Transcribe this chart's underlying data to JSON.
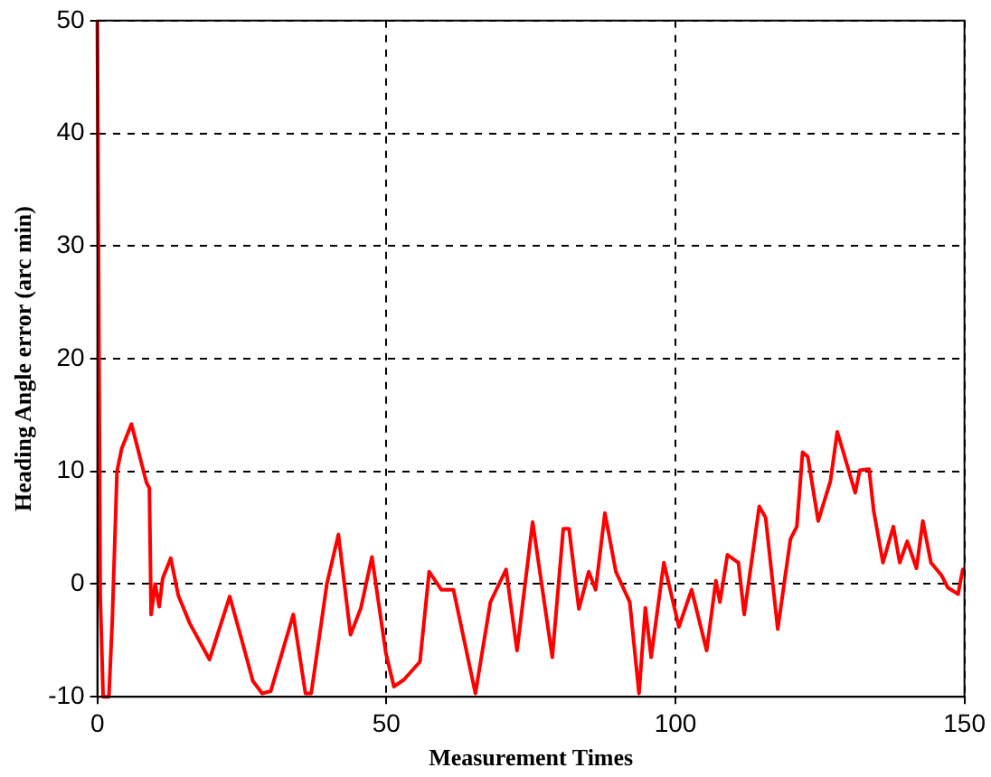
{
  "chart_data": {
    "type": "line",
    "xlabel": "Measurement Times",
    "ylabel": "Heading Angle error (arc min)",
    "x": [
      0,
      0.5,
      1,
      2,
      2.6,
      3.4,
      4.2,
      5.9,
      7,
      8.5,
      9,
      9.3,
      10,
      10.7,
      11.3,
      12.7,
      14,
      16,
      19.4,
      22.9,
      25,
      26.9,
      28.5,
      30,
      33.9,
      36,
      37,
      39.7,
      41.7,
      43.8,
      45.6,
      47.5,
      49.9,
      51.3,
      53,
      55.8,
      57.4,
      59.5,
      61.6,
      65.4,
      68,
      70.7,
      72.6,
      75.3,
      78.7,
      80.6,
      81.6,
      83.3,
      85,
      86.2,
      87.8,
      89.7,
      92.1,
      93.7,
      94.8,
      95.8,
      98,
      100.6,
      102.8,
      105.4,
      107,
      107.7,
      109,
      110.9,
      111.9,
      114.5,
      115.6,
      117.7,
      119.9,
      121,
      122,
      122.9,
      124.7,
      126.8,
      128,
      129,
      131.1,
      131.9,
      133.5,
      134.3,
      135.9,
      137.7,
      138.8,
      140.1,
      141.7,
      142.8,
      144.2,
      146,
      147.1,
      148.9,
      149.7,
      150
    ],
    "series": [
      {
        "color": "#ff0000",
        "values": [
          50,
          -1,
          -10,
          -10,
          -3,
          10,
          12,
          14.2,
          12,
          9,
          8.5,
          -2.7,
          0,
          -2,
          0.5,
          2.3,
          -1,
          -3.5,
          -6.7,
          -1.1,
          -5,
          -8.6,
          -9.7,
          -9.5,
          -2.7,
          -9.7,
          -9.7,
          0,
          4.4,
          -4.5,
          -2.1,
          2.4,
          -6.1,
          -9.1,
          -8.5,
          -6.9,
          1.1,
          -0.5,
          -0.5,
          -9.7,
          -1.6,
          1.3,
          -5.9,
          5.5,
          -6.5,
          4.9,
          4.9,
          -2.2,
          1.1,
          -0.5,
          6.3,
          1.1,
          -1.6,
          -9.7,
          -2.1,
          -6.5,
          1.9,
          -3.8,
          -0.5,
          -5.9,
          0.3,
          -1.6,
          2.6,
          1.9,
          -2.7,
          6.9,
          5.9,
          -4,
          4,
          5.1,
          11.7,
          11.3,
          5.6,
          9.1,
          13.5,
          11.8,
          8.1,
          10.1,
          10.2,
          6.5,
          1.9,
          5.1,
          1.9,
          3.8,
          1.4,
          5.6,
          1.9,
          0.8,
          -0.3,
          -0.9,
          1.3,
          1.3
        ]
      }
    ],
    "xlim": [
      0,
      150
    ],
    "xticks": [
      0,
      50,
      100,
      150
    ],
    "ylim": [
      -10,
      50
    ],
    "yticks": [
      -10,
      0,
      10,
      20,
      30,
      40,
      50
    ],
    "grid": true,
    "legend": false,
    "marker": "none",
    "line_style": "solid"
  }
}
